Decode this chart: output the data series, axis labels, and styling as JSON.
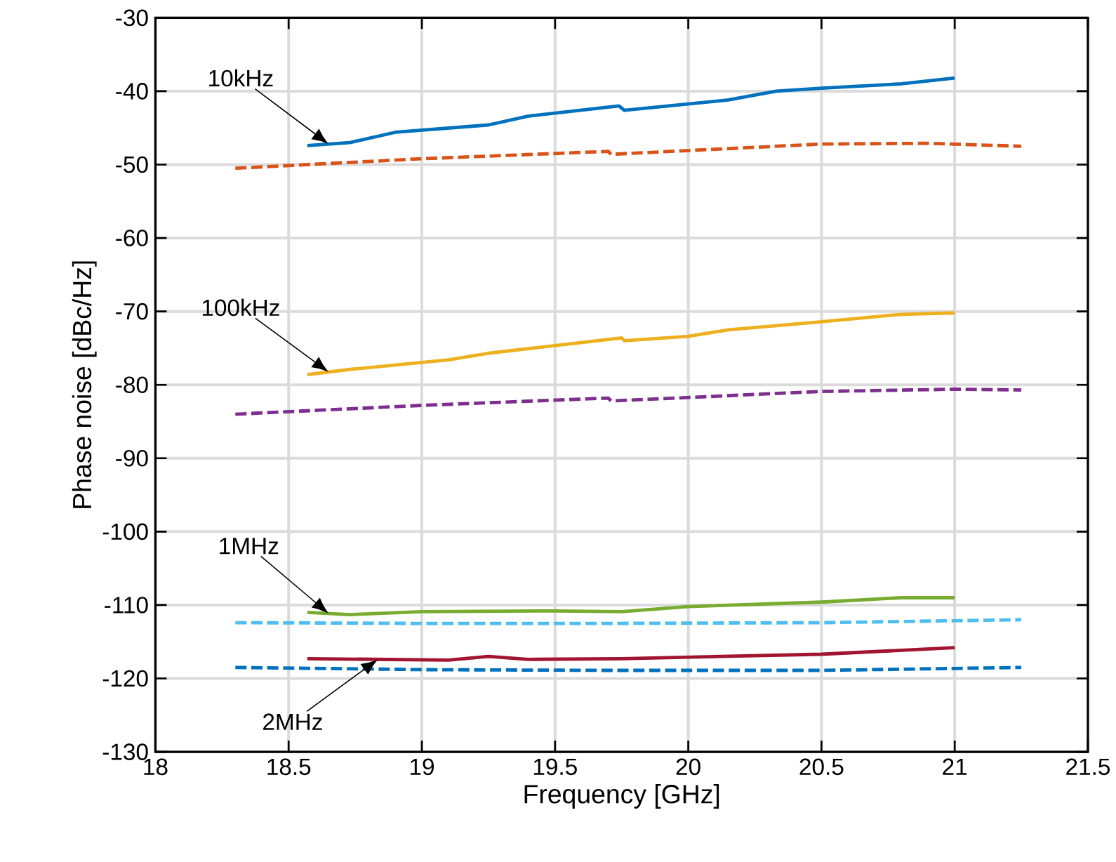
{
  "chart_data": {
    "type": "line",
    "xlabel": "Frequency [GHz]",
    "ylabel": "Phase noise [dBc/Hz]",
    "xlim": [
      18,
      21.5
    ],
    "ylim": [
      -130,
      -30
    ],
    "xticks": [
      18,
      18.5,
      19,
      19.5,
      20,
      20.5,
      21,
      21.5
    ],
    "yticks": [
      -130,
      -120,
      -110,
      -100,
      -90,
      -80,
      -70,
      -60,
      -50,
      -40,
      -30
    ],
    "grid": true,
    "legend": false,
    "line_style": "solid",
    "marker": "none",
    "series": [
      {
        "name": "10kHz",
        "color": "#0072bd",
        "x": [
          18.57,
          18.73,
          18.9,
          19.25,
          19.4,
          19.74,
          19.76,
          20.15,
          20.33,
          20.5,
          20.8,
          21.0
        ],
        "values": [
          -47.4,
          -47.0,
          -45.6,
          -44.6,
          -43.4,
          -42.0,
          -42.6,
          -41.2,
          -40.0,
          -39.6,
          -39.0,
          -38.2
        ]
      },
      {
        "color": "#d95319",
        "line_style": "dashed",
        "x": [
          18.3,
          19.0,
          19.7,
          19.71,
          20.5,
          20.9,
          21.25
        ],
        "values": [
          -50.5,
          -49.2,
          -48.2,
          -48.6,
          -47.2,
          -47.1,
          -47.5
        ]
      },
      {
        "name": "100kHz",
        "color": "#edb120",
        "x": [
          18.57,
          18.73,
          19.1,
          19.25,
          19.75,
          19.76,
          20.0,
          20.15,
          20.5,
          20.8,
          21.0
        ],
        "values": [
          -78.6,
          -77.9,
          -76.6,
          -75.7,
          -73.6,
          -74.0,
          -73.4,
          -72.5,
          -71.4,
          -70.4,
          -70.2
        ]
      },
      {
        "color": "#7e2f8e",
        "line_style": "dashed",
        "x": [
          18.3,
          19.0,
          19.7,
          19.71,
          20.5,
          21.0,
          21.25
        ],
        "values": [
          -84.0,
          -82.8,
          -81.8,
          -82.2,
          -80.9,
          -80.6,
          -80.7
        ]
      },
      {
        "name": "1MHz",
        "color": "#77ac30",
        "x": [
          18.57,
          18.73,
          19.0,
          19.5,
          19.75,
          20.0,
          20.5,
          20.8,
          21.0
        ],
        "values": [
          -111.0,
          -111.3,
          -110.9,
          -110.8,
          -110.9,
          -110.2,
          -109.6,
          -109.0,
          -109.0
        ]
      },
      {
        "color": "#4dbeee",
        "line_style": "dashed",
        "x": [
          18.3,
          19.0,
          19.7,
          20.5,
          21.25
        ],
        "values": [
          -112.4,
          -112.5,
          -112.5,
          -112.4,
          -112.0
        ]
      },
      {
        "name": "2MHz",
        "color": "#a2142f",
        "x": [
          18.57,
          19.1,
          19.25,
          19.4,
          19.75,
          20.5,
          21.0
        ],
        "values": [
          -117.3,
          -117.5,
          -117.0,
          -117.4,
          -117.3,
          -116.7,
          -115.8
        ]
      },
      {
        "color": "#0072bd",
        "line_style": "dashed",
        "x": [
          18.3,
          19.0,
          19.7,
          20.5,
          21.25
        ],
        "values": [
          -118.5,
          -118.8,
          -118.9,
          -118.9,
          -118.5
        ]
      }
    ]
  }
}
